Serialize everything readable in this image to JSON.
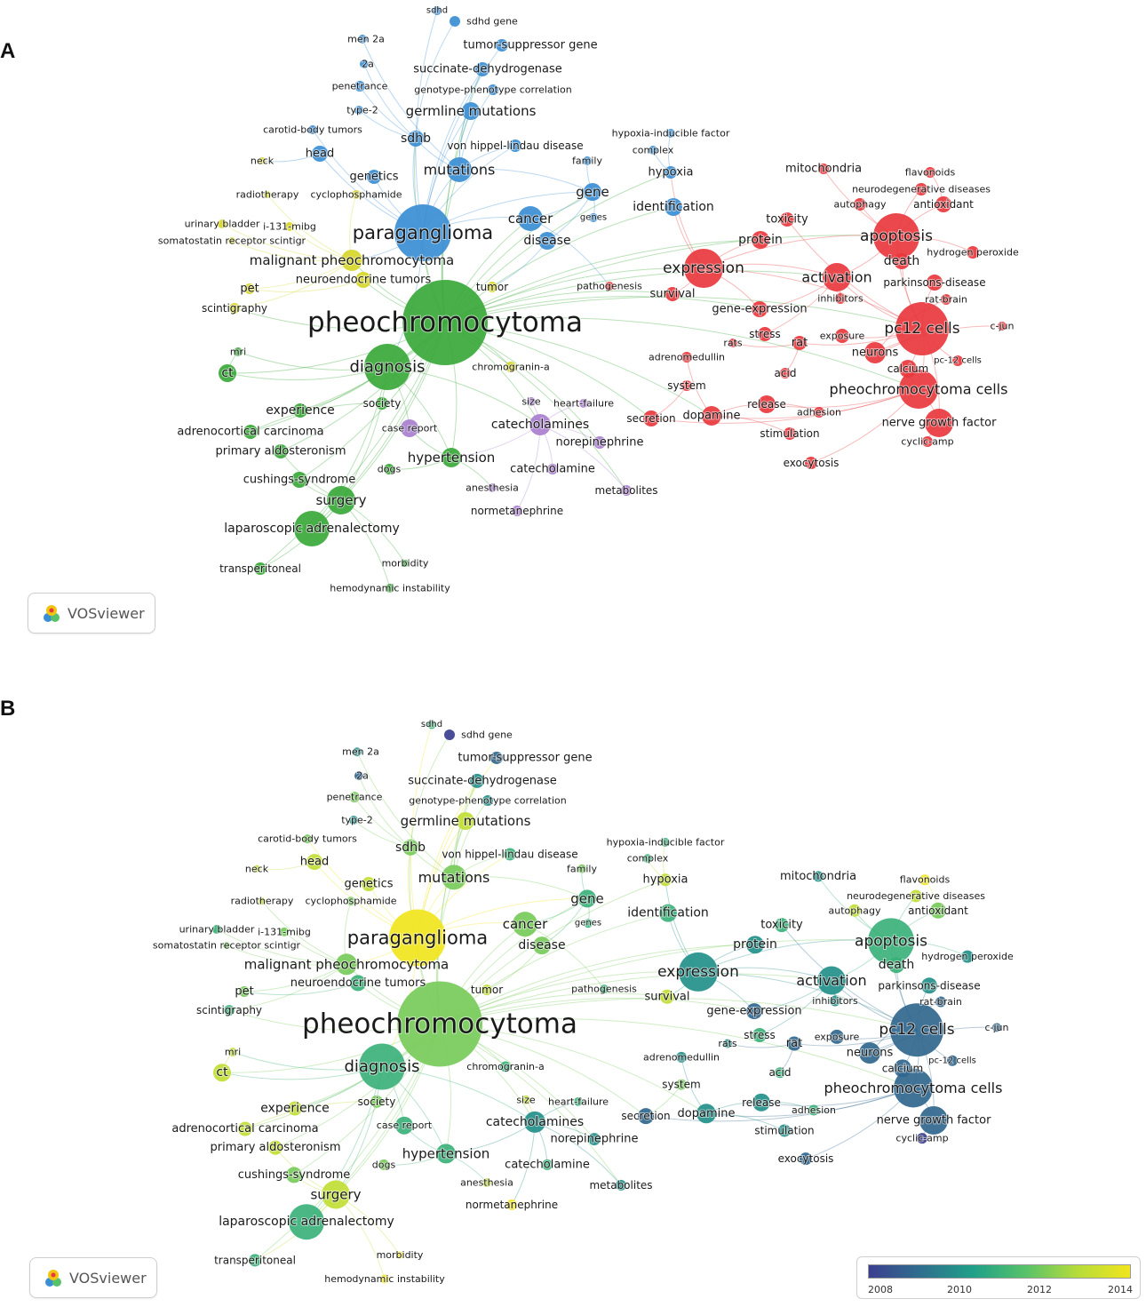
{
  "panels": [
    {
      "letter": "A",
      "mode": "cluster"
    },
    {
      "letter": "B",
      "mode": "overlay"
    }
  ],
  "logo": {
    "text": "VOSviewer"
  },
  "overlay_legend": {
    "ticks": [
      "2008",
      "2010",
      "2012",
      "2014"
    ],
    "gradient": [
      "#3b3f8f",
      "#2f6f8e",
      "#1fa088",
      "#57c26a",
      "#b7dc3a",
      "#f1e51d"
    ]
  },
  "cluster_colors": {
    "red": "#e8383d",
    "green": "#3aa83a",
    "blue": "#3b8ed4",
    "yellow": "#d6d62a",
    "purple": "#a97fcf"
  },
  "keywords": [
    {
      "label": "sdhd",
      "cluster": "blue",
      "year": 2011
    },
    {
      "label": "sdhd gene",
      "cluster": "blue",
      "year": 2008
    },
    {
      "label": "men 2a",
      "cluster": "blue",
      "year": 2010
    },
    {
      "label": "tumor-suppressor gene",
      "cluster": "blue",
      "year": 2009
    },
    {
      "label": "2a",
      "cluster": "blue",
      "year": 2009
    },
    {
      "label": "succinate-dehydrogenase",
      "cluster": "blue",
      "year": 2010
    },
    {
      "label": "penetrance",
      "cluster": "blue",
      "year": 2012
    },
    {
      "label": "genotype-phenotype correlation",
      "cluster": "blue",
      "year": 2010
    },
    {
      "label": "type-2",
      "cluster": "blue",
      "year": 2010
    },
    {
      "label": "germline mutations",
      "cluster": "blue",
      "year": 2013
    },
    {
      "label": "carotid-body tumors",
      "cluster": "blue",
      "year": 2012
    },
    {
      "label": "sdhb",
      "cluster": "blue",
      "year": 2012
    },
    {
      "label": "von hippel-lindau disease",
      "cluster": "blue",
      "year": 2011
    },
    {
      "label": "hypoxia-inducible factor",
      "cluster": "blue",
      "year": 2011
    },
    {
      "label": "complex",
      "cluster": "blue",
      "year": 2011
    },
    {
      "label": "head",
      "cluster": "blue",
      "year": 2013
    },
    {
      "label": "family",
      "cluster": "blue",
      "year": 2012
    },
    {
      "label": "mutations",
      "cluster": "blue",
      "year": 2012
    },
    {
      "label": "hypoxia",
      "cluster": "blue",
      "year": 2013
    },
    {
      "label": "neck",
      "cluster": "yellow",
      "year": 2013
    },
    {
      "label": "genetics",
      "cluster": "blue",
      "year": 2013
    },
    {
      "label": "gene",
      "cluster": "blue",
      "year": 2011
    },
    {
      "label": "radiotherapy",
      "cluster": "yellow",
      "year": 2013
    },
    {
      "label": "cyclophosphamide",
      "cluster": "yellow",
      "year": 2012
    },
    {
      "label": "identification",
      "cluster": "blue",
      "year": 2011
    },
    {
      "label": "genes",
      "cluster": "blue",
      "year": 2011
    },
    {
      "label": "cancer",
      "cluster": "blue",
      "year": 2012
    },
    {
      "label": "urinary bladder",
      "cluster": "yellow",
      "year": 2011
    },
    {
      "label": "i-131-mibg",
      "cluster": "yellow",
      "year": 2012
    },
    {
      "label": "somatostatin receptor scintigr",
      "cluster": "yellow",
      "year": 2012
    },
    {
      "label": "paraganglioma",
      "cluster": "blue",
      "year": 2014
    },
    {
      "label": "disease",
      "cluster": "blue",
      "year": 2012
    },
    {
      "label": "malignant pheochromocytoma",
      "cluster": "yellow",
      "year": 2012
    },
    {
      "label": "neuroendocrine tumors",
      "cluster": "yellow",
      "year": 2011
    },
    {
      "label": "pet",
      "cluster": "yellow",
      "year": 2012
    },
    {
      "label": "tumor",
      "cluster": "yellow",
      "year": 2013
    },
    {
      "label": "pathogenesis",
      "cluster": "red",
      "year": 2011
    },
    {
      "label": "scintigraphy",
      "cluster": "yellow",
      "year": 2011
    },
    {
      "label": "pheochromocytoma",
      "cluster": "green",
      "year": 2012
    },
    {
      "label": "mri",
      "cluster": "green",
      "year": 2013
    },
    {
      "label": "ct",
      "cluster": "green",
      "year": 2013
    },
    {
      "label": "diagnosis",
      "cluster": "green",
      "year": 2011
    },
    {
      "label": "chromogranin-a",
      "cluster": "yellow",
      "year": 2011
    },
    {
      "label": "experience",
      "cluster": "green",
      "year": 2013
    },
    {
      "label": "society",
      "cluster": "green",
      "year": 2012
    },
    {
      "label": "size",
      "cluster": "purple",
      "year": 2013
    },
    {
      "label": "heart-failure",
      "cluster": "purple",
      "year": 2011
    },
    {
      "label": "case report",
      "cluster": "purple",
      "year": 2011
    },
    {
      "label": "catecholamines",
      "cluster": "purple",
      "year": 2010
    },
    {
      "label": "adrenocortical carcinoma",
      "cluster": "green",
      "year": 2013
    },
    {
      "label": "norepinephrine",
      "cluster": "purple",
      "year": 2010
    },
    {
      "label": "primary aldosteronism",
      "cluster": "green",
      "year": 2013
    },
    {
      "label": "hypertension",
      "cluster": "green",
      "year": 2011
    },
    {
      "label": "catecholamine",
      "cluster": "purple",
      "year": 2011
    },
    {
      "label": "dogs",
      "cluster": "green",
      "year": 2012
    },
    {
      "label": "cushings-syndrome",
      "cluster": "green",
      "year": 2012
    },
    {
      "label": "anesthesia",
      "cluster": "purple",
      "year": 2013
    },
    {
      "label": "metabolites",
      "cluster": "purple",
      "year": 2010
    },
    {
      "label": "surgery",
      "cluster": "green",
      "year": 2013
    },
    {
      "label": "normetanephrine",
      "cluster": "purple",
      "year": 2014
    },
    {
      "label": "laparoscopic adrenalectomy",
      "cluster": "green",
      "year": 2011
    },
    {
      "label": "transperitoneal",
      "cluster": "green",
      "year": 2011
    },
    {
      "label": "morbidity",
      "cluster": "green",
      "year": 2014
    },
    {
      "label": "hemodynamic instability",
      "cluster": "green",
      "year": 2014
    },
    {
      "label": "mitochondria",
      "cluster": "red",
      "year": 2010
    },
    {
      "label": "flavonoids",
      "cluster": "red",
      "year": 2014
    },
    {
      "label": "neurodegenerative diseases",
      "cluster": "red",
      "year": 2013
    },
    {
      "label": "autophagy",
      "cluster": "red",
      "year": 2013
    },
    {
      "label": "antioxidant",
      "cluster": "red",
      "year": 2012
    },
    {
      "label": "toxicity",
      "cluster": "red",
      "year": 2011
    },
    {
      "label": "apoptosis",
      "cluster": "red",
      "year": 2011
    },
    {
      "label": "protein",
      "cluster": "red",
      "year": 2010
    },
    {
      "label": "death",
      "cluster": "red",
      "year": 2011
    },
    {
      "label": "hydrogen peroxide",
      "cluster": "red",
      "year": 2010
    },
    {
      "label": "expression",
      "cluster": "red",
      "year": 2010
    },
    {
      "label": "activation",
      "cluster": "red",
      "year": 2010
    },
    {
      "label": "parkinsons-disease",
      "cluster": "red",
      "year": 2010
    },
    {
      "label": "survival",
      "cluster": "red",
      "year": 2013
    },
    {
      "label": "inhibitors",
      "cluster": "red",
      "year": 2010
    },
    {
      "label": "rat-brain",
      "cluster": "red",
      "year": 2009
    },
    {
      "label": "gene-expression",
      "cluster": "red",
      "year": 2009
    },
    {
      "label": "c-jun",
      "cluster": "red",
      "year": 2009
    },
    {
      "label": "stress",
      "cluster": "red",
      "year": 2011
    },
    {
      "label": "exposure",
      "cluster": "red",
      "year": 2009
    },
    {
      "label": "pc12 cells",
      "cluster": "red",
      "year": 2009
    },
    {
      "label": "rats",
      "cluster": "red",
      "year": 2010
    },
    {
      "label": "rat",
      "cluster": "red",
      "year": 2009
    },
    {
      "label": "neurons",
      "cluster": "red",
      "year": 2009
    },
    {
      "label": "adrenomedullin",
      "cluster": "red",
      "year": 2010
    },
    {
      "label": "pc-12 cells",
      "cluster": "red",
      "year": 2009
    },
    {
      "label": "acid",
      "cluster": "red",
      "year": 2011
    },
    {
      "label": "calcium",
      "cluster": "red",
      "year": 2009
    },
    {
      "label": "system",
      "cluster": "red",
      "year": 2012
    },
    {
      "label": "pheochromocytoma cells",
      "cluster": "red",
      "year": 2009
    },
    {
      "label": "release",
      "cluster": "red",
      "year": 2010
    },
    {
      "label": "adhesion",
      "cluster": "red",
      "year": 2011
    },
    {
      "label": "secretion",
      "cluster": "red",
      "year": 2009
    },
    {
      "label": "dopamine",
      "cluster": "red",
      "year": 2010
    },
    {
      "label": "nerve growth factor",
      "cluster": "red",
      "year": 2009
    },
    {
      "label": "stimulation",
      "cluster": "red",
      "year": 2010
    },
    {
      "label": "cyclic-amp",
      "cluster": "red",
      "year": 2008
    },
    {
      "label": "exocytosis",
      "cluster": "red",
      "year": 2009
    }
  ]
}
